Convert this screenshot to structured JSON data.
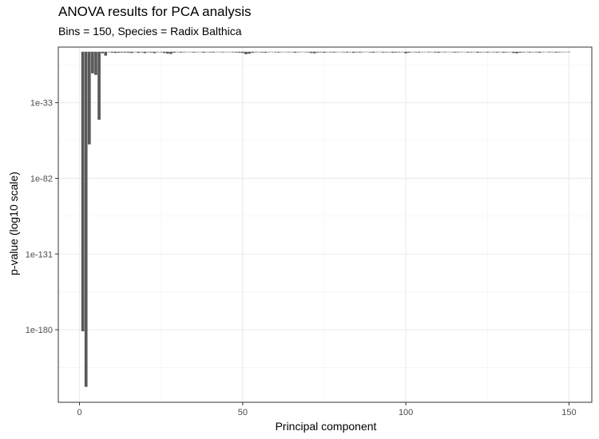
{
  "chart_data": {
    "type": "bar",
    "title": "ANOVA results for PCA analysis",
    "subtitle": "Bins = 150, Species = Radix Balthica",
    "xlabel": "Principal component",
    "ylabel": "p-value (log10 scale)",
    "x_ticks": [
      0,
      50,
      100,
      150
    ],
    "y_ticks": [
      {
        "log10": -33,
        "label": "1e-33"
      },
      {
        "log10": -82,
        "label": "1e-82"
      },
      {
        "log10": -131,
        "label": "1e-131"
      },
      {
        "log10": -180,
        "label": "1e-180"
      }
    ],
    "xlim": [
      -6.5,
      157
    ],
    "y_log10_lim": [
      -227,
      3
    ],
    "y_scale": "log10",
    "grid": true,
    "bar_color": "#595959",
    "x": [
      1,
      2,
      3,
      4,
      5,
      6,
      7,
      8,
      9,
      10,
      11,
      12,
      13,
      14,
      15,
      16,
      17,
      18,
      19,
      20,
      21,
      22,
      23,
      24,
      25,
      26,
      27,
      28,
      29,
      30,
      31,
      32,
      33,
      34,
      35,
      36,
      37,
      38,
      39,
      40,
      41,
      42,
      43,
      44,
      45,
      46,
      47,
      48,
      49,
      50,
      51,
      52,
      53,
      54,
      55,
      56,
      57,
      58,
      59,
      60,
      61,
      62,
      63,
      64,
      65,
      66,
      67,
      68,
      69,
      70,
      71,
      72,
      73,
      74,
      75,
      76,
      77,
      78,
      79,
      80,
      81,
      82,
      83,
      84,
      85,
      86,
      87,
      88,
      89,
      90,
      91,
      92,
      93,
      94,
      95,
      96,
      97,
      98,
      99,
      100,
      101,
      102,
      103,
      104,
      105,
      106,
      107,
      108,
      109,
      110,
      111,
      112,
      113,
      114,
      115,
      116,
      117,
      118,
      119,
      120,
      121,
      122,
      123,
      124,
      125,
      126,
      127,
      128,
      129,
      130,
      131,
      132,
      133,
      134,
      135,
      136,
      137,
      138,
      139,
      140,
      141,
      142,
      143,
      144,
      145,
      146,
      147,
      148,
      149,
      150
    ],
    "log10_p": [
      -181,
      -217,
      -60,
      -14,
      -15,
      -44,
      -1,
      -2.5,
      -0.3,
      -0.6,
      -0.8,
      -0.6,
      -0.5,
      -0.5,
      -0.6,
      -0.8,
      -0.3,
      -0.7,
      -0.4,
      -0.9,
      -0.4,
      -0.5,
      -0.9,
      -0.3,
      -0.4,
      -0.8,
      -1.2,
      -1.4,
      -0.6,
      -0.3,
      -0.5,
      -0.4,
      -0.2,
      -0.3,
      -0.5,
      -0.3,
      -0.2,
      -0.6,
      -0.3,
      -0.4,
      -0.5,
      -0.2,
      -0.3,
      -0.4,
      -0.3,
      -0.2,
      -0.4,
      -0.5,
      -0.6,
      -0.8,
      -1.6,
      -1.3,
      -0.7,
      -0.4,
      -0.3,
      -0.5,
      -0.6,
      -0.3,
      -0.2,
      -0.4,
      -0.5,
      -0.3,
      -0.2,
      -0.4,
      -0.3,
      -0.6,
      -0.4,
      -0.2,
      -0.3,
      -0.4,
      -0.8,
      -1.0,
      -0.5,
      -0.4,
      -0.6,
      -0.3,
      -0.4,
      -0.5,
      -0.3,
      -0.2,
      -0.4,
      -0.5,
      -0.3,
      -0.7,
      -0.4,
      -0.5,
      -0.3,
      -0.2,
      -0.4,
      -0.6,
      -0.3,
      -0.2,
      -0.5,
      -0.4,
      -0.3,
      -0.6,
      -0.5,
      -0.4,
      -0.3,
      -1.0,
      -0.6,
      -0.3,
      -0.4,
      -0.5,
      -0.3,
      -0.2,
      -0.4,
      -0.3,
      -0.5,
      -0.6,
      -0.3,
      -0.4,
      -0.2,
      -0.3,
      -0.5,
      -0.4,
      -0.3,
      -0.2,
      -0.5,
      -0.4,
      -0.3,
      -0.6,
      -0.4,
      -0.3,
      -0.5,
      -0.3,
      -0.4,
      -0.5,
      -0.3,
      -0.6,
      -0.4,
      -0.3,
      -0.8,
      -1.0,
      -0.6,
      -0.4,
      -0.3,
      -0.5,
      -0.3,
      -0.4,
      -0.6,
      -0.3,
      -0.2,
      -0.4,
      -0.3,
      -0.5,
      -0.4,
      -0.3,
      -0.2,
      -0.3
    ]
  }
}
